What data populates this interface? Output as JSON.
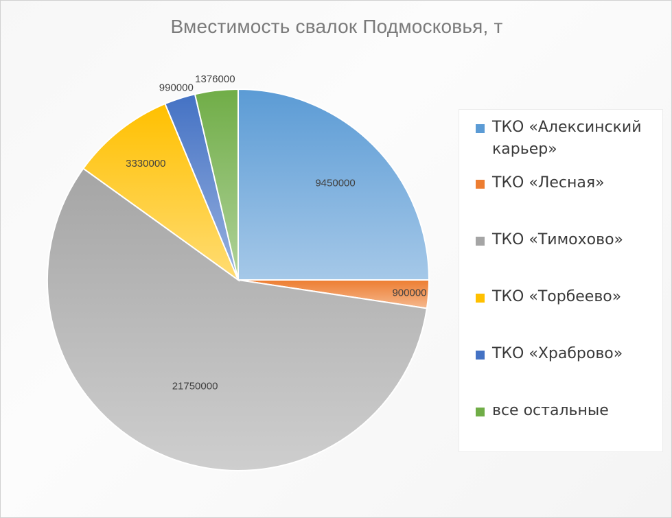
{
  "chart_data": {
    "type": "pie",
    "title": "Вместимость свалок Подмосковья, т",
    "legend_position": "right",
    "series": [
      {
        "name": "ТКО «Алексинский карьер»",
        "value": 9450000,
        "label": "9450000",
        "color": "#5b9bd5"
      },
      {
        "name": "ТКО «Лесная»",
        "value": 900000,
        "label": "900000",
        "color": "#ed7d31"
      },
      {
        "name": "ТКО «Тимохово»",
        "value": 21750000,
        "label": "21750000",
        "color": "#a5a5a5"
      },
      {
        "name": "ТКО «Торбеево»",
        "value": 3330000,
        "label": "3330000",
        "color": "#ffc000"
      },
      {
        "name": "ТКО «Храброво»",
        "value": 990000,
        "label": "990000",
        "color": "#4472c4"
      },
      {
        "name": "все остальные",
        "value": 1376000,
        "label": "1376000",
        "color": "#70ad47"
      }
    ]
  }
}
